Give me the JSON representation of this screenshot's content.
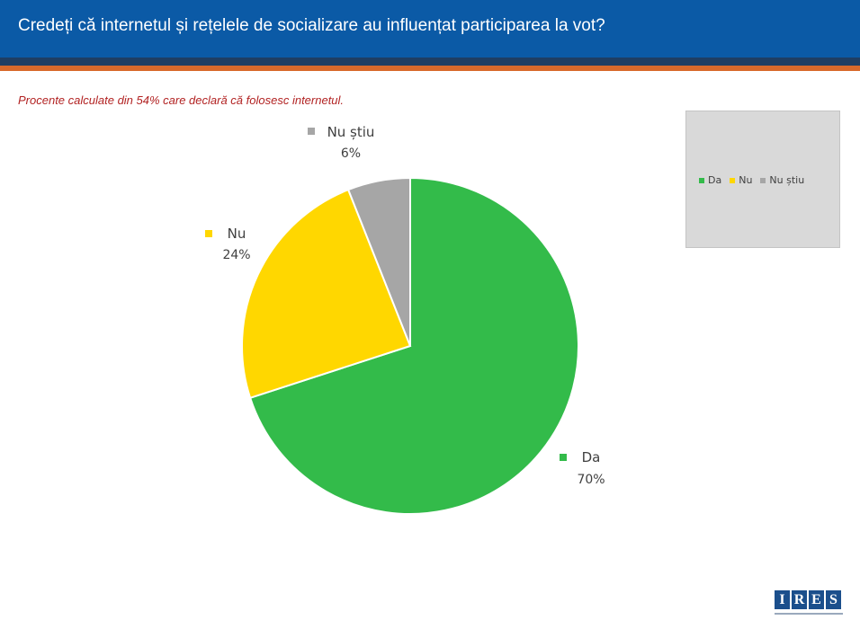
{
  "header": {
    "title": "Credeți că internetul și rețelele de socializare au influențat participarea la vot?"
  },
  "subtitle": "Procente calculate din 54% care declară că folosesc internetul.",
  "chart_data": {
    "type": "pie",
    "categories": [
      "Da",
      "Nu",
      "Nu știu"
    ],
    "values": [
      70,
      24,
      6
    ],
    "value_labels": [
      "70%",
      "24%",
      "6%"
    ],
    "colors": [
      "#33bb4a",
      "#ffd700",
      "#a6a6a6"
    ],
    "legend": [
      "Da",
      "Nu",
      "Nu știu"
    ],
    "legend_position": "right"
  },
  "logo": {
    "text": "IRES",
    "letters": [
      "I",
      "R",
      "E",
      "S"
    ],
    "color": "#1b4f8c"
  },
  "colors": {
    "header": "#0b5aa6",
    "stripe_dark": "#1f3e63",
    "stripe_orange": "#d8692b",
    "subtitle": "#b22323"
  }
}
